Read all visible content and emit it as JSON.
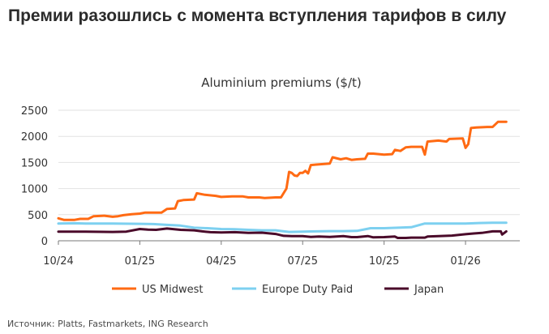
{
  "headline": "Премии разошлись с момента вступления тарифов в силу",
  "source": "Источник: Platts, Fastmarkets, ING Research",
  "colors": {
    "us": "#ff6a13",
    "eu": "#7dd0f0",
    "jp": "#4a0a2a",
    "axis": "#7a7a7a",
    "grid": "#e2e2e2",
    "text": "#333333"
  },
  "chart_data": {
    "type": "line",
    "title": "Aluminium premiums ($/t)",
    "xlabel": "",
    "ylabel": "",
    "xlim": [
      0,
      17
    ],
    "ylim": [
      0,
      2500
    ],
    "yticks": [
      "0",
      "500",
      "1000",
      "1500",
      "2000",
      "2500"
    ],
    "xticks": [
      {
        "x": 0,
        "label": "10/24"
      },
      {
        "x": 3,
        "label": "01/25"
      },
      {
        "x": 6,
        "label": "04/25"
      },
      {
        "x": 9,
        "label": "07/25"
      },
      {
        "x": 12,
        "label": "10/25"
      },
      {
        "x": 15,
        "label": "01/26"
      }
    ],
    "legend_position": "bottom",
    "series": [
      {
        "key": "us",
        "name": "US Midwest",
        "points": [
          [
            0,
            430
          ],
          [
            0.2,
            400
          ],
          [
            0.6,
            400
          ],
          [
            0.8,
            420
          ],
          [
            1.1,
            420
          ],
          [
            1.3,
            470
          ],
          [
            1.7,
            480
          ],
          [
            2.0,
            460
          ],
          [
            2.2,
            470
          ],
          [
            2.4,
            490
          ],
          [
            2.7,
            510
          ],
          [
            3.0,
            520
          ],
          [
            3.2,
            540
          ],
          [
            3.8,
            540
          ],
          [
            4.0,
            610
          ],
          [
            4.3,
            620
          ],
          [
            4.4,
            760
          ],
          [
            4.6,
            780
          ],
          [
            5.0,
            790
          ],
          [
            5.1,
            910
          ],
          [
            5.4,
            880
          ],
          [
            5.8,
            860
          ],
          [
            6.0,
            840
          ],
          [
            6.4,
            850
          ],
          [
            6.8,
            850
          ],
          [
            7.0,
            830
          ],
          [
            7.4,
            830
          ],
          [
            7.6,
            820
          ],
          [
            8.0,
            830
          ],
          [
            8.2,
            830
          ],
          [
            8.4,
            1000
          ],
          [
            8.5,
            1320
          ],
          [
            8.6,
            1300
          ],
          [
            8.7,
            1250
          ],
          [
            8.8,
            1240
          ],
          [
            8.9,
            1300
          ],
          [
            9.0,
            1300
          ],
          [
            9.1,
            1340
          ],
          [
            9.2,
            1290
          ],
          [
            9.3,
            1450
          ],
          [
            9.5,
            1460
          ],
          [
            10.0,
            1480
          ],
          [
            10.1,
            1600
          ],
          [
            10.4,
            1560
          ],
          [
            10.6,
            1580
          ],
          [
            10.8,
            1550
          ],
          [
            11.0,
            1560
          ],
          [
            11.3,
            1570
          ],
          [
            11.4,
            1670
          ],
          [
            11.6,
            1670
          ],
          [
            12.0,
            1650
          ],
          [
            12.3,
            1660
          ],
          [
            12.4,
            1740
          ],
          [
            12.6,
            1720
          ],
          [
            12.8,
            1790
          ],
          [
            13.0,
            1800
          ],
          [
            13.4,
            1800
          ],
          [
            13.5,
            1650
          ],
          [
            13.6,
            1900
          ],
          [
            14.0,
            1920
          ],
          [
            14.3,
            1900
          ],
          [
            14.4,
            1950
          ],
          [
            14.9,
            1960
          ],
          [
            15.0,
            1780
          ],
          [
            15.1,
            1850
          ],
          [
            15.2,
            2160
          ],
          [
            15.4,
            2170
          ],
          [
            15.8,
            2180
          ],
          [
            16.0,
            2180
          ],
          [
            16.2,
            2280
          ],
          [
            16.5,
            2280
          ]
        ]
      },
      {
        "key": "eu",
        "name": "Europe Duty Paid",
        "points": [
          [
            0,
            330
          ],
          [
            0.6,
            335
          ],
          [
            1.0,
            330
          ],
          [
            2.0,
            330
          ],
          [
            3.0,
            325
          ],
          [
            3.5,
            320
          ],
          [
            4.0,
            305
          ],
          [
            4.5,
            290
          ],
          [
            5.0,
            250
          ],
          [
            5.5,
            240
          ],
          [
            6.0,
            225
          ],
          [
            6.5,
            220
          ],
          [
            7.0,
            210
          ],
          [
            7.5,
            200
          ],
          [
            8.0,
            200
          ],
          [
            8.5,
            170
          ],
          [
            9.0,
            175
          ],
          [
            9.5,
            180
          ],
          [
            10.0,
            185
          ],
          [
            10.5,
            185
          ],
          [
            11.0,
            190
          ],
          [
            11.5,
            240
          ],
          [
            12.0,
            240
          ],
          [
            12.5,
            250
          ],
          [
            13.0,
            260
          ],
          [
            13.5,
            330
          ],
          [
            14.0,
            330
          ],
          [
            14.5,
            330
          ],
          [
            15.0,
            330
          ],
          [
            15.5,
            340
          ],
          [
            16.0,
            345
          ],
          [
            16.5,
            345
          ]
        ]
      },
      {
        "key": "jp",
        "name": "Japan",
        "points": [
          [
            0,
            175
          ],
          [
            0.5,
            175
          ],
          [
            1.0,
            175
          ],
          [
            2.0,
            170
          ],
          [
            2.5,
            175
          ],
          [
            3.0,
            225
          ],
          [
            3.3,
            215
          ],
          [
            3.6,
            210
          ],
          [
            4.0,
            235
          ],
          [
            4.5,
            210
          ],
          [
            5.0,
            200
          ],
          [
            5.3,
            180
          ],
          [
            5.6,
            165
          ],
          [
            6.0,
            160
          ],
          [
            6.5,
            165
          ],
          [
            7.0,
            150
          ],
          [
            7.5,
            155
          ],
          [
            8.0,
            130
          ],
          [
            8.3,
            95
          ],
          [
            8.6,
            90
          ],
          [
            9.0,
            90
          ],
          [
            9.3,
            75
          ],
          [
            9.6,
            80
          ],
          [
            10.0,
            75
          ],
          [
            10.5,
            90
          ],
          [
            10.8,
            70
          ],
          [
            11.0,
            70
          ],
          [
            11.4,
            90
          ],
          [
            11.6,
            65
          ],
          [
            12.0,
            70
          ],
          [
            12.4,
            80
          ],
          [
            12.5,
            55
          ],
          [
            12.8,
            55
          ],
          [
            13.0,
            60
          ],
          [
            13.5,
            60
          ],
          [
            13.6,
            80
          ],
          [
            14.0,
            90
          ],
          [
            14.5,
            100
          ],
          [
            15.0,
            125
          ],
          [
            15.3,
            140
          ],
          [
            15.6,
            150
          ],
          [
            16.0,
            180
          ],
          [
            16.3,
            180
          ],
          [
            16.35,
            120
          ],
          [
            16.5,
            180
          ]
        ]
      }
    ]
  }
}
